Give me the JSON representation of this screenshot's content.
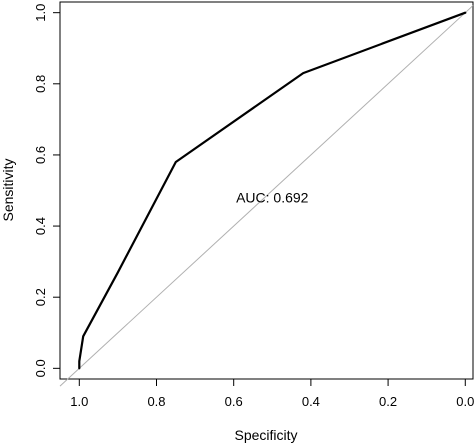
{
  "chart_data": {
    "type": "line",
    "title": "",
    "xlabel": "Specificity",
    "ylabel": "Sensitivity",
    "xlim": [
      1.05,
      -0.02
    ],
    "ylim": [
      -0.03,
      1.03
    ],
    "x_reversed": true,
    "x_ticks": [
      1.0,
      0.8,
      0.6,
      0.4,
      0.2,
      0.0
    ],
    "x_tick_labels": [
      "1.0",
      "0.8",
      "0.6",
      "0.4",
      "0.2",
      "0.0"
    ],
    "y_ticks": [
      0.0,
      0.2,
      0.4,
      0.6,
      0.8,
      1.0
    ],
    "y_tick_labels": [
      "0.0",
      "0.2",
      "0.4",
      "0.6",
      "0.8",
      "1.0"
    ],
    "grid": false,
    "series": [
      {
        "x": [
          1.0,
          1.0,
          0.99,
          0.9,
          0.75,
          0.42,
          0.0
        ],
        "y": [
          0.0,
          0.02,
          0.09,
          0.27,
          0.58,
          0.83,
          1.0
        ],
        "color": "#000000"
      }
    ],
    "reference_line": {
      "x": [
        1.05,
        -0.02
      ],
      "y": [
        -0.05,
        1.02
      ],
      "color": "#b0b0b0"
    },
    "annotations": [
      {
        "text": "AUC: 0.692",
        "x": 0.5,
        "y": 0.48
      }
    ]
  }
}
